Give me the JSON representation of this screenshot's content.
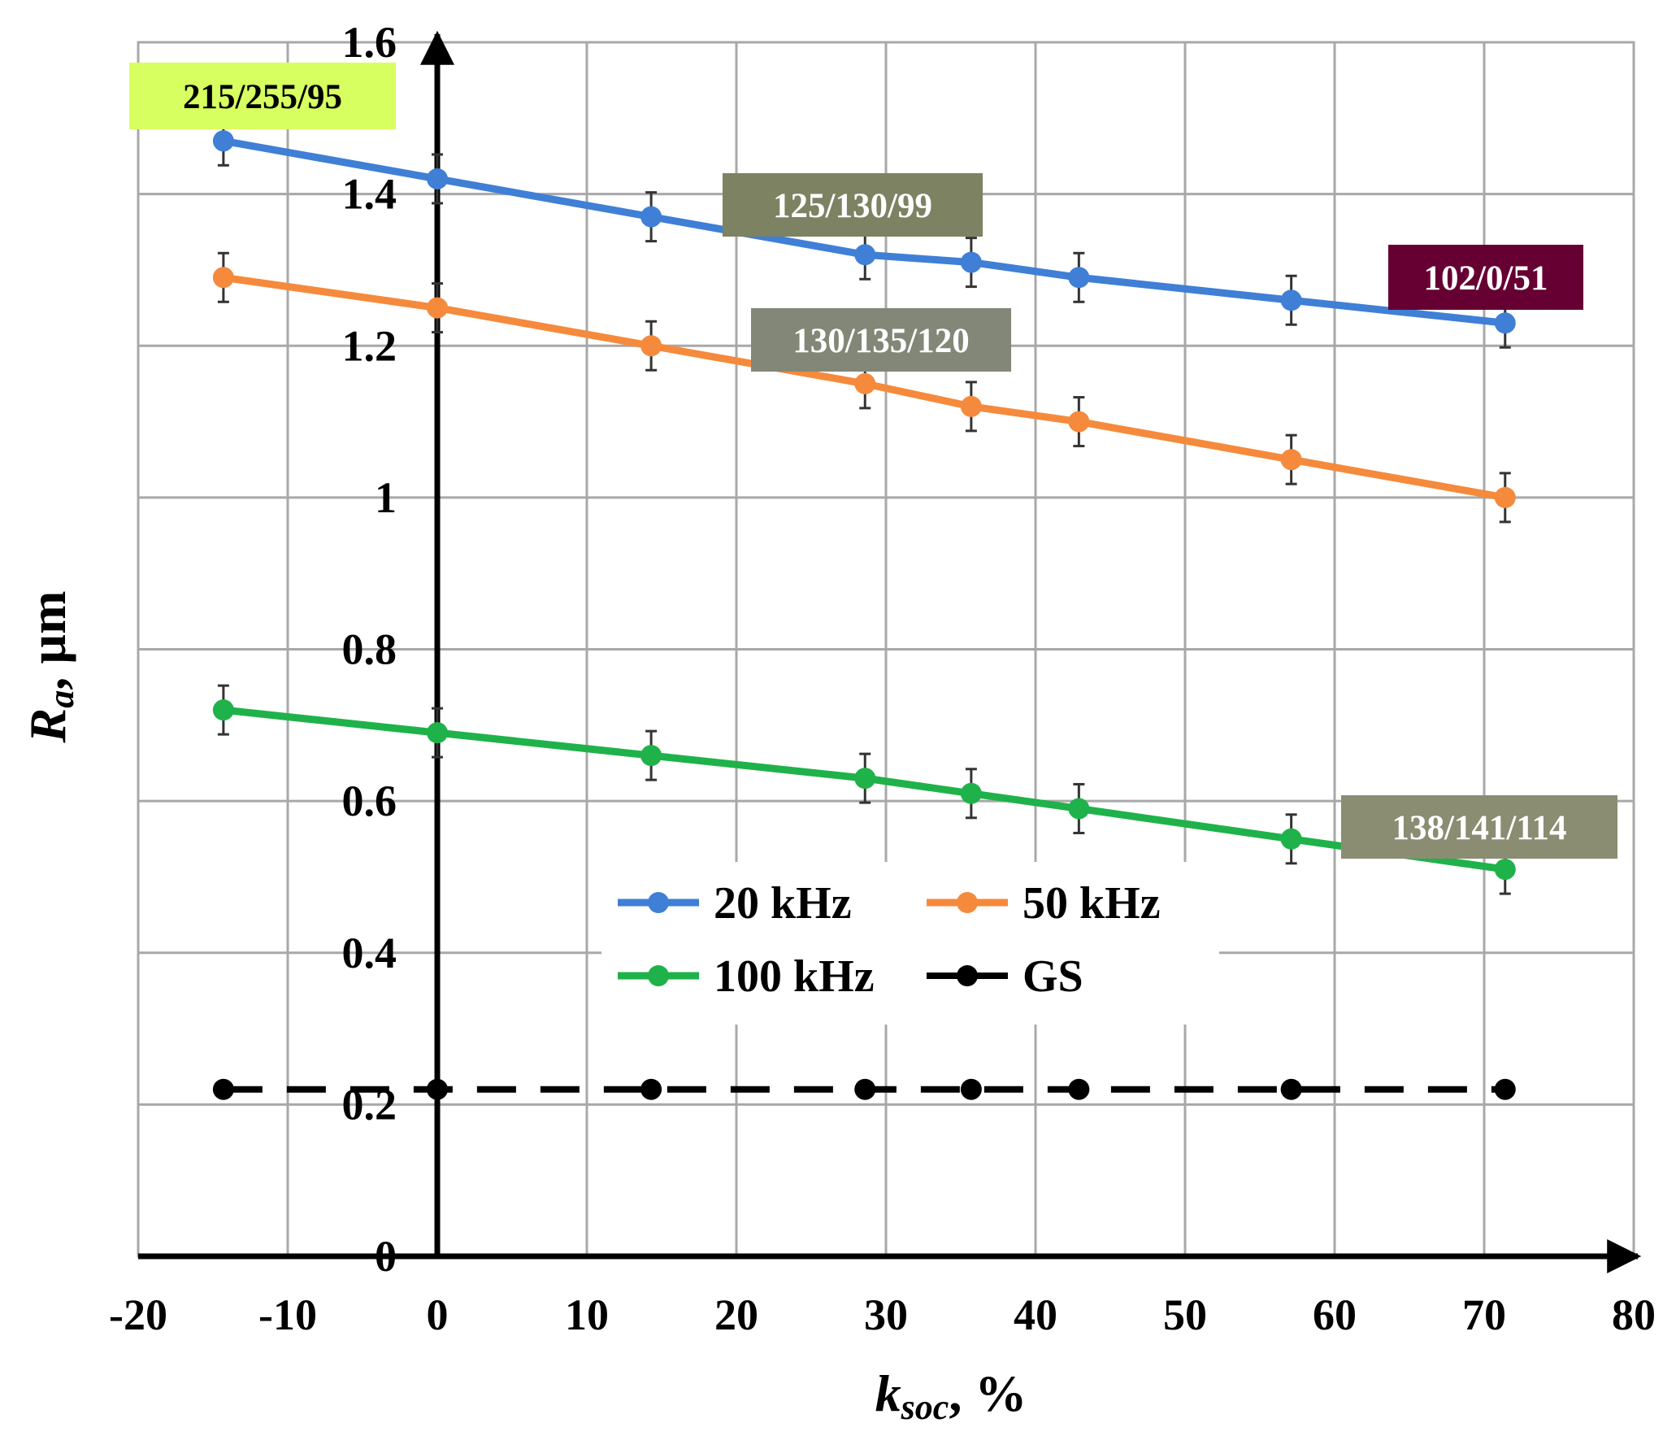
{
  "chart_data": {
    "type": "line",
    "xlabel": {
      "main": "k",
      "sub": "soc",
      "unit": ", %"
    },
    "ylabel": {
      "main": "R",
      "sub": "a",
      "unit": ", µm"
    },
    "xlim": [
      -20,
      80
    ],
    "ylim": [
      0,
      1.6
    ],
    "x_ticks": [
      -20,
      -10,
      0,
      10,
      20,
      30,
      40,
      50,
      60,
      70,
      80
    ],
    "y_ticks": [
      0,
      0.2,
      0.4,
      0.6,
      0.8,
      1,
      1.2,
      1.4,
      1.6
    ],
    "x_tick_labels": [
      "-20",
      "-10",
      "0",
      "10",
      "20",
      "30",
      "40",
      "50",
      "60",
      "70",
      "80"
    ],
    "y_tick_labels": [
      "0",
      "0.2",
      "0.4",
      "0.6",
      "0.8",
      "1",
      "1.2",
      "1.4",
      "1.6"
    ],
    "grid": true,
    "x": [
      -14.3,
      0,
      14.3,
      28.6,
      35.7,
      42.9,
      57.1,
      71.4
    ],
    "series": [
      {
        "name": "20 kHz",
        "color": "#3f7fd6",
        "style": "solid",
        "error_bars": true,
        "values": [
          1.47,
          1.42,
          1.37,
          1.32,
          1.31,
          1.29,
          1.26,
          1.23
        ]
      },
      {
        "name": "50 kHz",
        "color": "#f58a3c",
        "style": "solid",
        "error_bars": true,
        "values": [
          1.29,
          1.25,
          1.2,
          1.15,
          1.12,
          1.1,
          1.05,
          1.0
        ]
      },
      {
        "name": "100 kHz",
        "color": "#1fb24a",
        "style": "solid",
        "error_bars": true,
        "values": [
          0.72,
          0.69,
          0.66,
          0.63,
          0.61,
          0.59,
          0.55,
          0.51
        ]
      },
      {
        "name": "GS",
        "color": "#000000",
        "style": "dashed",
        "error_bars": false,
        "values": [
          0.22,
          0.22,
          0.22,
          0.22,
          0.22,
          0.22,
          0.22,
          0.22
        ]
      }
    ],
    "legend_position": "lower-center",
    "annotations": [
      {
        "text": "215/255/95",
        "bg": "#d7ff5f",
        "fg": "#000000",
        "x": -14.3,
        "y": 1.47
      },
      {
        "text": "125/130/99",
        "bg": "#7d8263",
        "fg": "#ffffff",
        "x": 28.6,
        "y": 1.32
      },
      {
        "text": "130/135/120",
        "bg": "#828778",
        "fg": "#ffffff",
        "x": 28.6,
        "y": 1.15
      },
      {
        "text": "102/0/51",
        "bg": "#660033",
        "fg": "#ffffff",
        "x": 71.4,
        "y": 1.23
      },
      {
        "text": "138/141/114",
        "bg": "#8a8d72",
        "fg": "#ffffff",
        "x": 71.4,
        "y": 0.51
      }
    ]
  }
}
